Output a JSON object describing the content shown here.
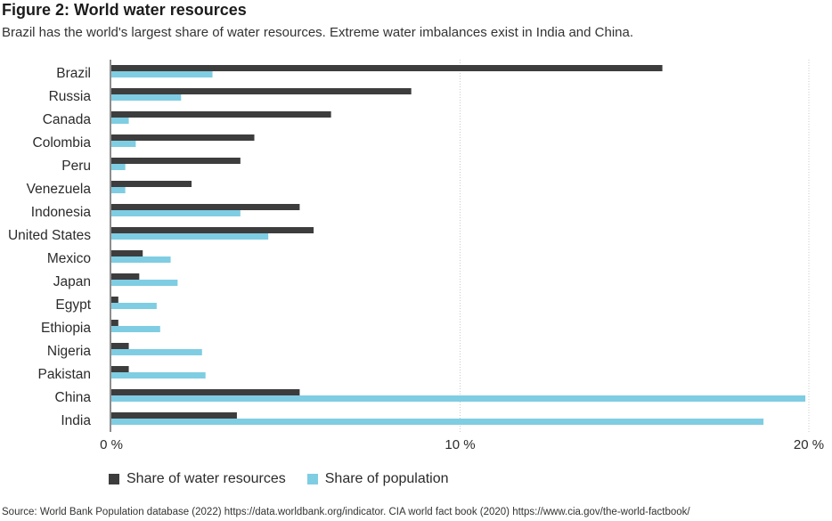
{
  "title": "Figure 2: World water resources",
  "subtitle": "Brazil has the world's largest share of water resources. Extreme water imbalances exist in India and China.",
  "source": "Source: World Bank Population database (2022) https://data.worldbank.org/indicator. CIA world fact book (2020) https://www.cia.gov/the-world-factbook/",
  "colors": {
    "water": "#3d3d3d",
    "population": "#7fcde2",
    "grid": "#c9c9c9",
    "axis": "#444444"
  },
  "chart_data": {
    "type": "bar",
    "orientation": "horizontal",
    "categories": [
      "Brazil",
      "Russia",
      "Canada",
      "Colombia",
      "Peru",
      "Venezuela",
      "Indonesia",
      "United States",
      "Mexico",
      "Japan",
      "Egypt",
      "Ethiopia",
      "Nigeria",
      "Pakistan",
      "China",
      "India"
    ],
    "series": [
      {
        "name": "Share of water resources",
        "color": "#3d3d3d",
        "values": [
          15.8,
          8.6,
          6.3,
          4.1,
          3.7,
          2.3,
          5.4,
          5.8,
          0.9,
          0.8,
          0.2,
          0.2,
          0.5,
          0.5,
          5.4,
          3.6
        ]
      },
      {
        "name": "Share of population",
        "color": "#7fcde2",
        "values": [
          2.9,
          2.0,
          0.5,
          0.7,
          0.4,
          0.4,
          3.7,
          4.5,
          1.7,
          1.9,
          1.3,
          1.4,
          2.6,
          2.7,
          19.9,
          18.7
        ]
      }
    ],
    "xlim": [
      0,
      20
    ],
    "xticks": [
      0,
      10,
      20
    ],
    "xtick_labels": [
      "0 %",
      "10 %",
      "20 %"
    ],
    "grid": "vertical dotted",
    "legend": "bottom-left"
  }
}
